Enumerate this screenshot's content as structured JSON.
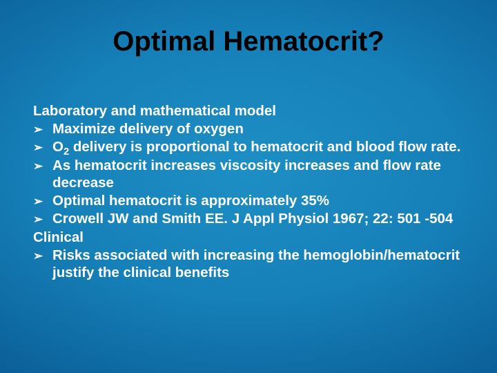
{
  "colors": {
    "background_center": "#1d8fc4",
    "background_mid": "#0b5e97",
    "background_edge": "#053a68",
    "title_color": "#000000",
    "body_color": "#ffffff"
  },
  "typography": {
    "title_fontsize_pt": 30,
    "body_fontsize_pt": 16,
    "font_family": "Arial",
    "font_weight": "bold"
  },
  "title": "Optimal Hematocrit?",
  "sections": [
    {
      "heading": "Laboratory and mathematical model",
      "bullets": [
        {
          "text": "Maximize delivery of oxygen"
        },
        {
          "html": "O<sub>2</sub> delivery is proportional to hematocrit and blood flow rate."
        },
        {
          "text": "As hematocrit increases viscosity increases and flow rate decrease"
        },
        {
          "text": "Optimal hematocrit is approximately 35%"
        },
        {
          "text": "Crowell JW and Smith EE. J Appl Physiol 1967; 22: 501 -504"
        }
      ]
    },
    {
      "heading": "Clinical",
      "bullets": [
        {
          "text": "Risks associated with increasing the hemoglobin/hematocrit justify the clinical benefits"
        }
      ]
    }
  ],
  "bullet_marker": "➢"
}
